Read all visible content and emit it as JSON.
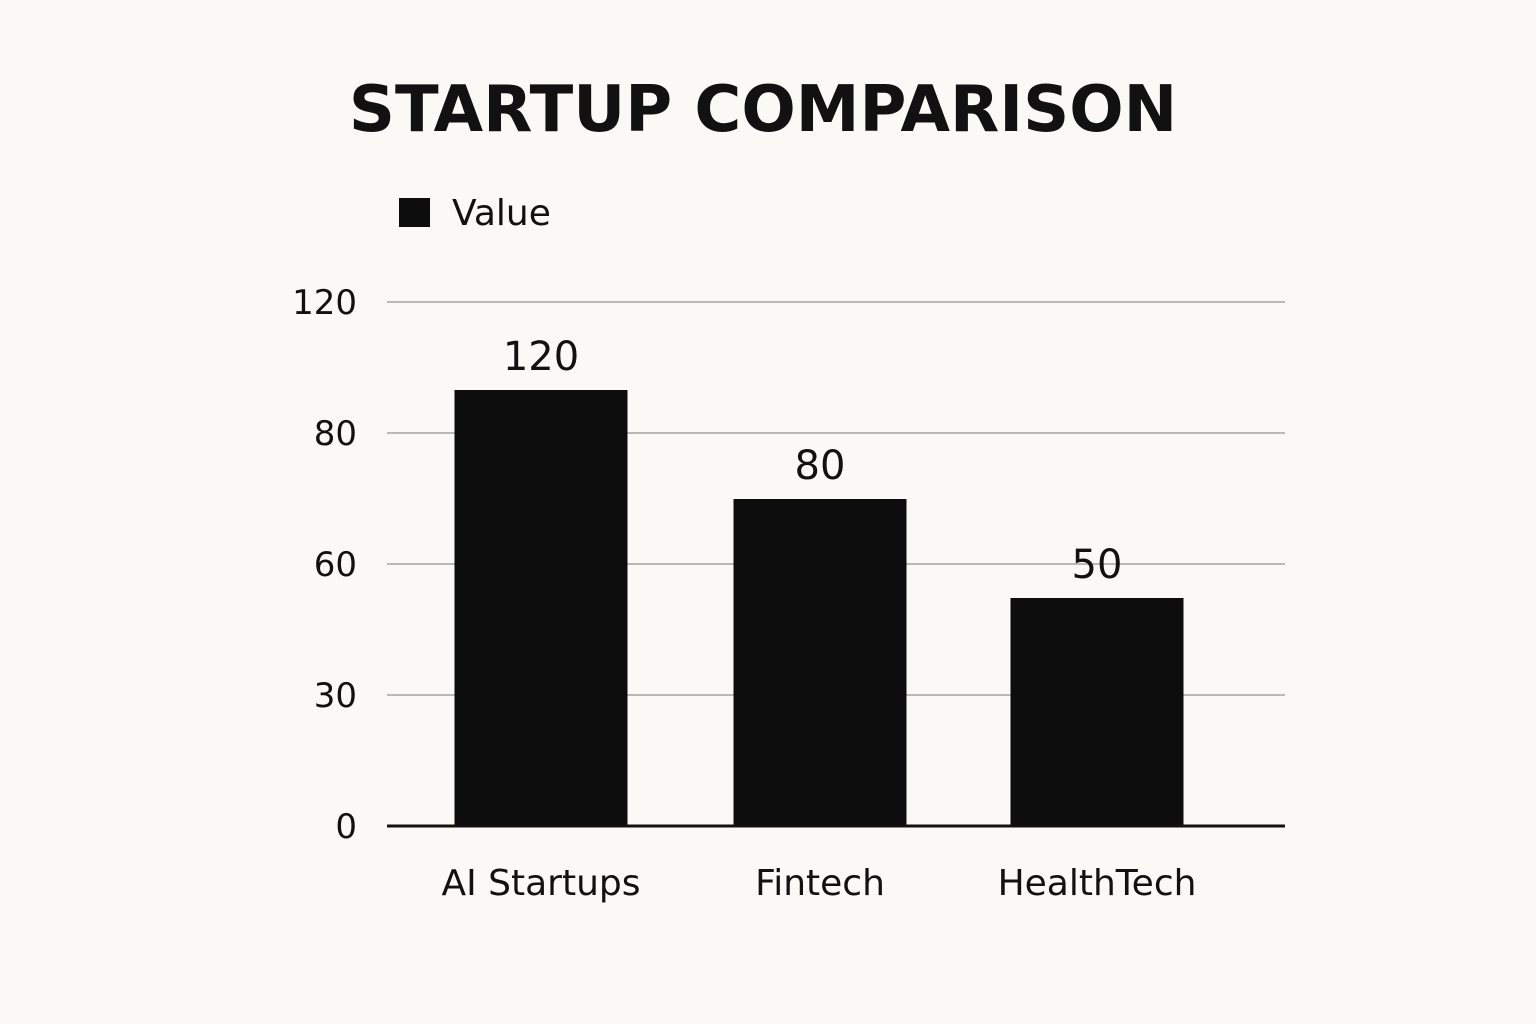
{
  "chart_data": {
    "type": "bar",
    "title": "STARTUP COMPARISON",
    "xlabel": "",
    "ylabel": "",
    "categories": [
      "AI Startups",
      "Fintech",
      "HealthTech"
    ],
    "series": [
      {
        "name": "Value",
        "values": [
          120,
          80,
          50
        ],
        "color": "#0d0d0d"
      }
    ],
    "y_ticks": [
      0,
      30,
      60,
      80,
      120
    ],
    "ylim": [
      0,
      120
    ],
    "grid": true,
    "legend": "top-left",
    "colors": {
      "background": "#faf9f5",
      "bar": "#0d0d0d",
      "text": "#111111",
      "grid": "#b9b9b9"
    }
  }
}
